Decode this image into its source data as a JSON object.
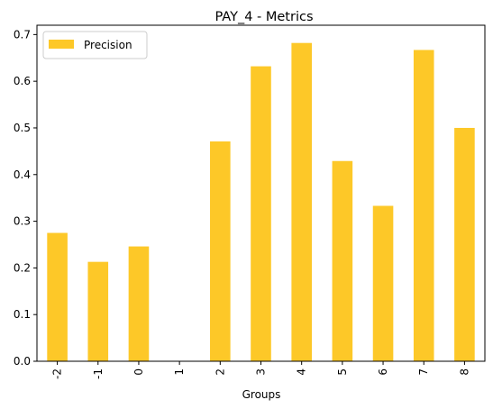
{
  "chart_data": {
    "type": "bar",
    "title": "PAY_4 - Metrics",
    "xlabel": "Groups",
    "ylabel": "",
    "categories": [
      "-2",
      "-1",
      "0",
      "1",
      "2",
      "3",
      "4",
      "5",
      "6",
      "7",
      "8"
    ],
    "series": [
      {
        "name": "Precision",
        "values": [
          0.275,
          0.213,
          0.246,
          0.0,
          0.471,
          0.632,
          0.682,
          0.429,
          0.333,
          0.667,
          0.5
        ],
        "color": "#fdc828"
      }
    ],
    "ylim": [
      0,
      0.72
    ],
    "yticks": [
      "0.0",
      "0.1",
      "0.2",
      "0.3",
      "0.4",
      "0.5",
      "0.6",
      "0.7"
    ],
    "ytick_values": [
      0.0,
      0.1,
      0.2,
      0.3,
      0.4,
      0.5,
      0.6,
      0.7
    ],
    "grid": false,
    "legend_position": "top-left",
    "xtick_rotation": "vertical"
  }
}
